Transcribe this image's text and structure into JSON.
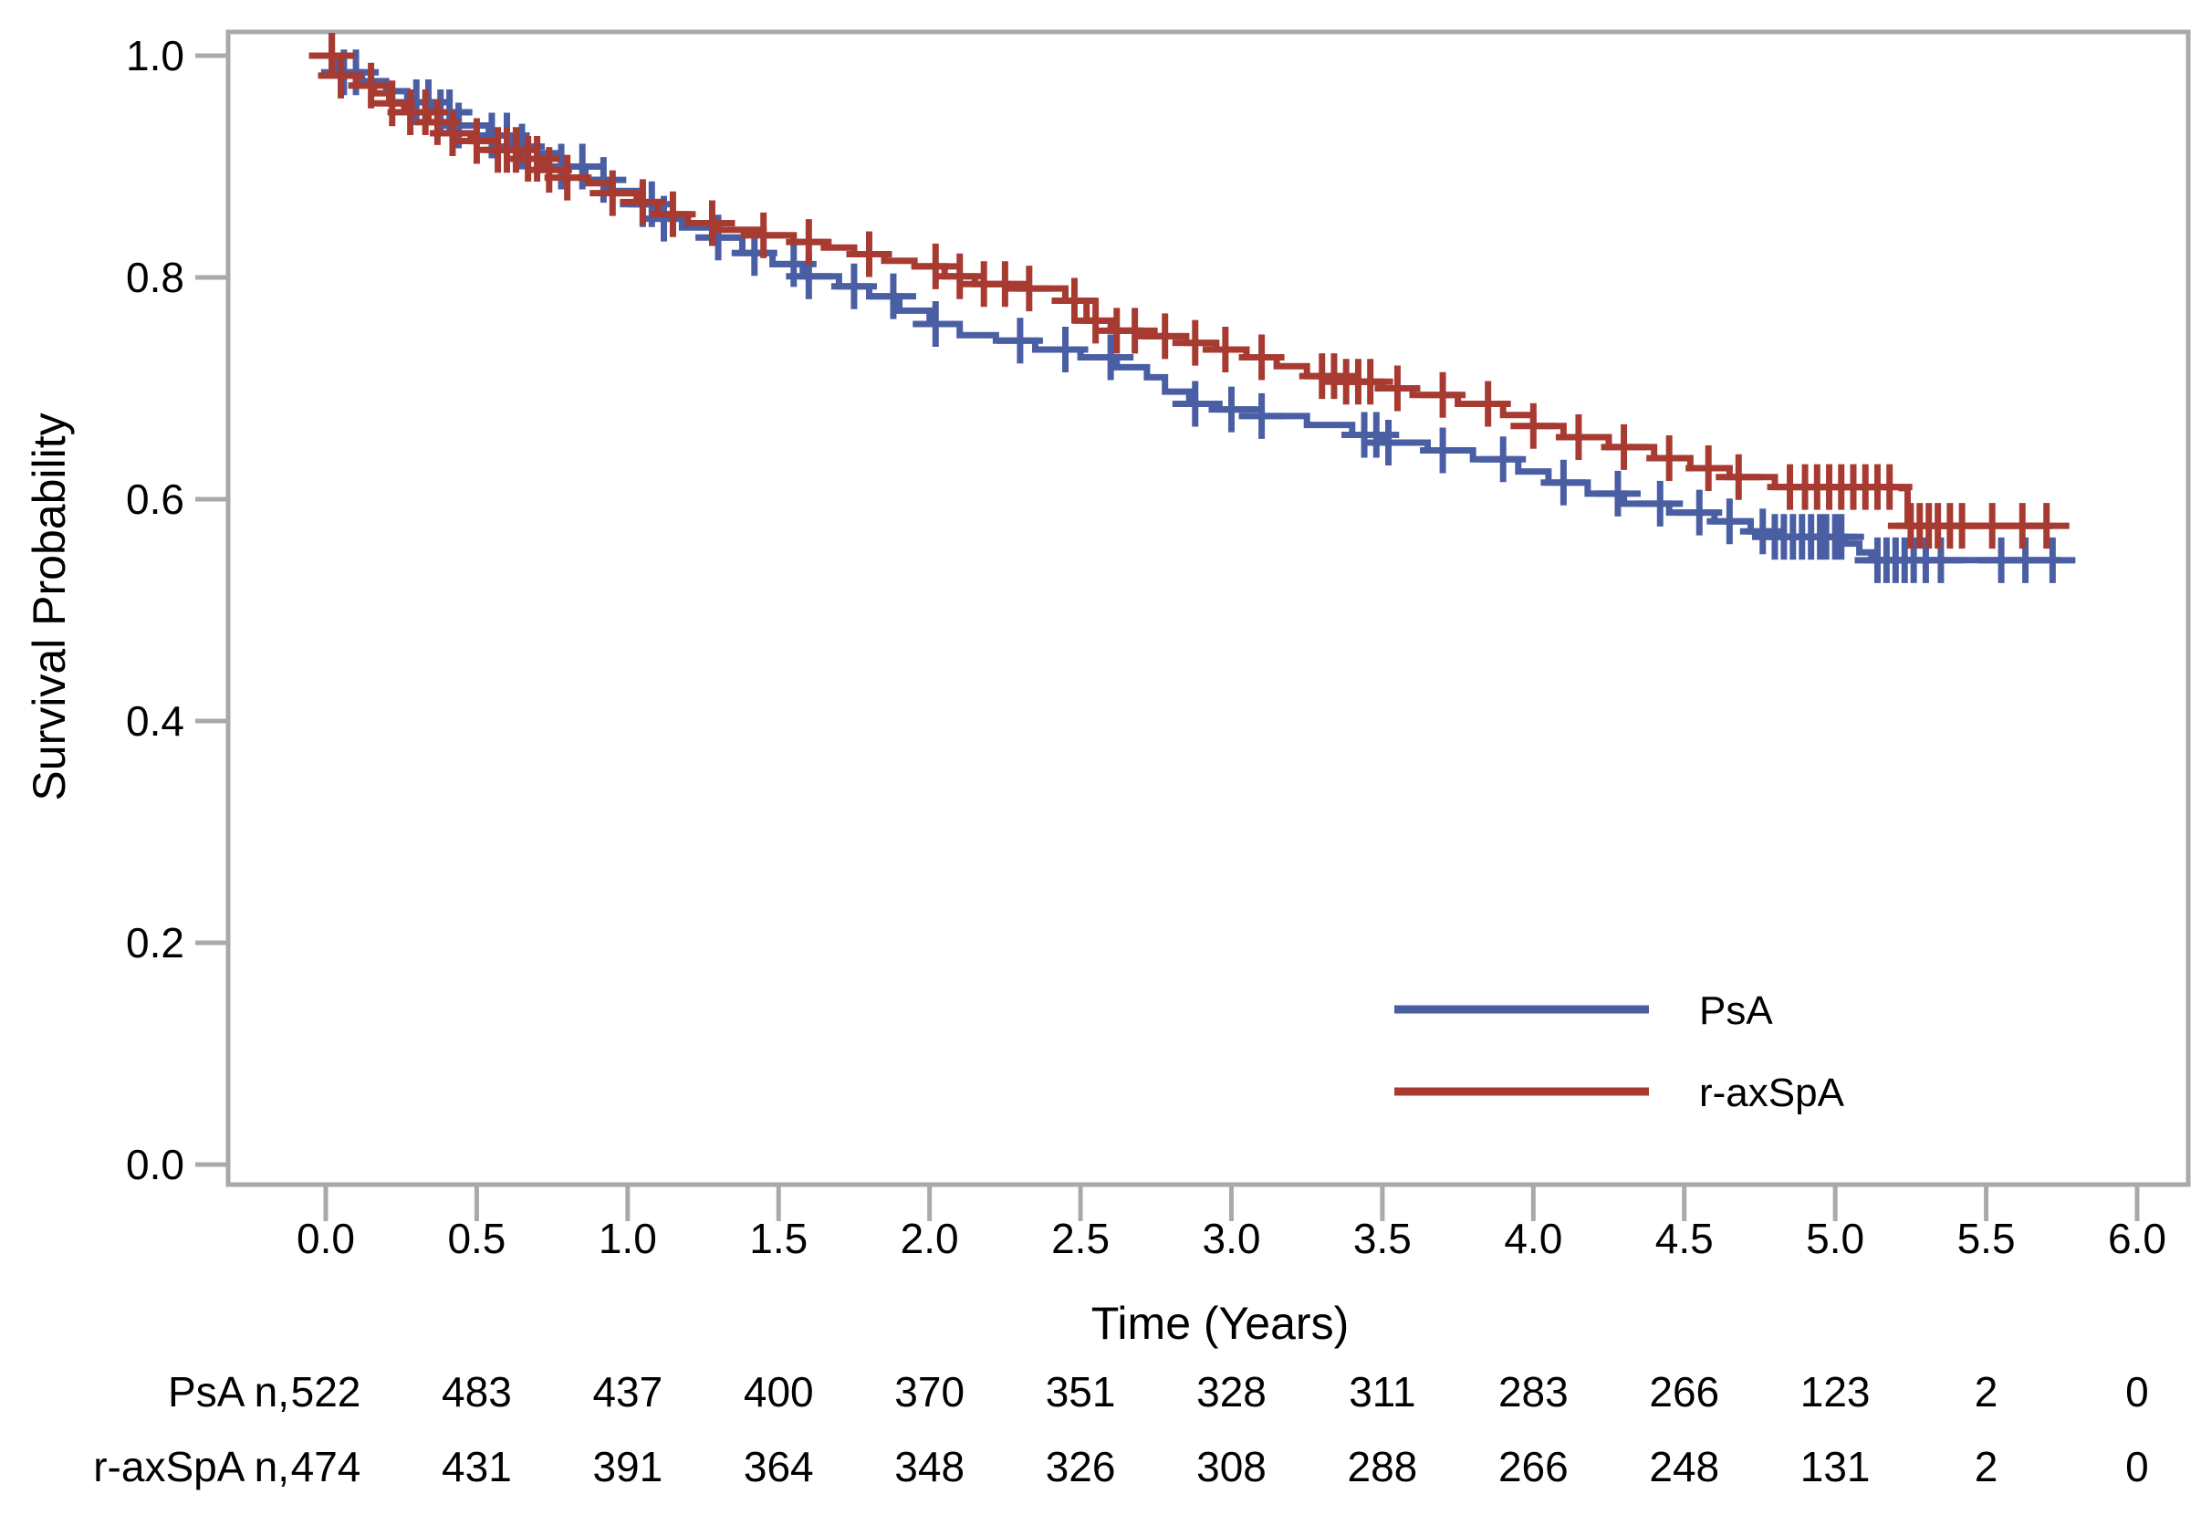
{
  "figure": {
    "y_axis": {
      "title": "Survival Probability",
      "tick_labels": [
        "1.0",
        "0.8",
        "0.6",
        "0.4",
        "0.2",
        "0.0"
      ],
      "tick_values": [
        1.0,
        0.8,
        0.6,
        0.4,
        0.2,
        0.0
      ]
    },
    "x_axis": {
      "title": "Time (Years)",
      "tick_labels": [
        "0.0",
        "0.5",
        "1.0",
        "1.5",
        "2.0",
        "2.5",
        "3.0",
        "3.5",
        "4.0",
        "4.5",
        "5.0",
        "5.5",
        "6.0"
      ],
      "tick_values": [
        0,
        0.5,
        1.0,
        1.5,
        2.0,
        2.5,
        3.0,
        3.5,
        4.0,
        4.5,
        5.0,
        5.5,
        6.0
      ]
    },
    "legend": [
      {
        "label": "PsA",
        "color": "#4A5EA3"
      },
      {
        "label": "r-axSpA",
        "color": "#A73B31"
      }
    ],
    "risk_table": {
      "rows": [
        {
          "label": "PsA n,",
          "values": [
            522,
            483,
            437,
            400,
            370,
            351,
            328,
            311,
            283,
            266,
            123,
            2,
            0
          ]
        },
        {
          "label": "r-axSpA n,",
          "values": [
            474,
            431,
            391,
            364,
            348,
            326,
            308,
            288,
            266,
            248,
            131,
            2,
            0
          ]
        }
      ]
    },
    "colors": {
      "axis": "#A7A9AB",
      "text": "#000000"
    }
  },
  "chart_data": {
    "type": "line",
    "subtype": "kaplan-meier-step",
    "title": "",
    "xlabel": "Time (Years)",
    "ylabel": "Survival Probability",
    "xlim": [
      0,
      6
    ],
    "ylim": [
      0,
      1
    ],
    "grid": false,
    "legend_position": "inside-lower-right",
    "series": [
      {
        "name": "PsA",
        "color": "#4A5EA3",
        "steps": [
          [
            0,
            1.0
          ],
          [
            0.04,
            0.985
          ],
          [
            0.12,
            0.977
          ],
          [
            0.2,
            0.968
          ],
          [
            0.27,
            0.958
          ],
          [
            0.35,
            0.949
          ],
          [
            0.44,
            0.937
          ],
          [
            0.54,
            0.928
          ],
          [
            0.62,
            0.918
          ],
          [
            0.7,
            0.912
          ],
          [
            0.78,
            0.9
          ],
          [
            0.86,
            0.888
          ],
          [
            0.94,
            0.878
          ],
          [
            1.03,
            0.866
          ],
          [
            1.1,
            0.853
          ],
          [
            1.18,
            0.845
          ],
          [
            1.28,
            0.836
          ],
          [
            1.38,
            0.822
          ],
          [
            1.48,
            0.812
          ],
          [
            1.58,
            0.801
          ],
          [
            1.7,
            0.792
          ],
          [
            1.8,
            0.783
          ],
          [
            1.9,
            0.77
          ],
          [
            2.0,
            0.758
          ],
          [
            2.1,
            0.748
          ],
          [
            2.22,
            0.743
          ],
          [
            2.35,
            0.735
          ],
          [
            2.5,
            0.728
          ],
          [
            2.62,
            0.719
          ],
          [
            2.72,
            0.71
          ],
          [
            2.78,
            0.697
          ],
          [
            2.86,
            0.686
          ],
          [
            2.96,
            0.681
          ],
          [
            3.1,
            0.675
          ],
          [
            3.25,
            0.667
          ],
          [
            3.4,
            0.658
          ],
          [
            3.5,
            0.651
          ],
          [
            3.65,
            0.644
          ],
          [
            3.8,
            0.636
          ],
          [
            3.95,
            0.625
          ],
          [
            4.05,
            0.615
          ],
          [
            4.18,
            0.605
          ],
          [
            4.3,
            0.596
          ],
          [
            4.45,
            0.588
          ],
          [
            4.6,
            0.58
          ],
          [
            4.72,
            0.571
          ],
          [
            4.8,
            0.566
          ],
          [
            5.03,
            0.56
          ],
          [
            5.08,
            0.552
          ],
          [
            5.12,
            0.545
          ],
          [
            5.75,
            0.545
          ]
        ],
        "censor_times": [
          0.02,
          0.06,
          0.1,
          0.3,
          0.34,
          0.38,
          0.41,
          0.44,
          0.55,
          0.6,
          0.65,
          0.78,
          0.85,
          0.92,
          1.05,
          1.08,
          1.12,
          1.3,
          1.42,
          1.55,
          1.6,
          1.75,
          1.88,
          2.02,
          2.3,
          2.45,
          2.6,
          2.88,
          3.0,
          3.1,
          3.44,
          3.48,
          3.52,
          3.7,
          3.9,
          4.1,
          4.28,
          4.42,
          4.55,
          4.65,
          4.76,
          4.8,
          4.83,
          4.86,
          4.89,
          4.92,
          4.95,
          4.97,
          5.0,
          5.02,
          5.14,
          5.17,
          5.2,
          5.23,
          5.26,
          5.3,
          5.35,
          5.55,
          5.63,
          5.72
        ]
      },
      {
        "name": "r-axSpA",
        "color": "#A73B31",
        "steps": [
          [
            0,
            1.0
          ],
          [
            0.05,
            0.982
          ],
          [
            0.1,
            0.973
          ],
          [
            0.16,
            0.966
          ],
          [
            0.21,
            0.957
          ],
          [
            0.26,
            0.949
          ],
          [
            0.34,
            0.94
          ],
          [
            0.42,
            0.93
          ],
          [
            0.48,
            0.923
          ],
          [
            0.57,
            0.915
          ],
          [
            0.64,
            0.907
          ],
          [
            0.72,
            0.897
          ],
          [
            0.8,
            0.89
          ],
          [
            0.87,
            0.885
          ],
          [
            0.95,
            0.876
          ],
          [
            1.03,
            0.868
          ],
          [
            1.1,
            0.857
          ],
          [
            1.2,
            0.849
          ],
          [
            1.3,
            0.843
          ],
          [
            1.45,
            0.838
          ],
          [
            1.55,
            0.832
          ],
          [
            1.65,
            0.827
          ],
          [
            1.75,
            0.821
          ],
          [
            1.85,
            0.815
          ],
          [
            1.95,
            0.81
          ],
          [
            2.05,
            0.801
          ],
          [
            2.15,
            0.794
          ],
          [
            2.3,
            0.79
          ],
          [
            2.45,
            0.779
          ],
          [
            2.52,
            0.761
          ],
          [
            2.6,
            0.752
          ],
          [
            2.7,
            0.747
          ],
          [
            2.85,
            0.741
          ],
          [
            2.95,
            0.735
          ],
          [
            3.05,
            0.728
          ],
          [
            3.15,
            0.72
          ],
          [
            3.25,
            0.711
          ],
          [
            3.35,
            0.706
          ],
          [
            3.5,
            0.7
          ],
          [
            3.6,
            0.694
          ],
          [
            3.75,
            0.686
          ],
          [
            3.9,
            0.676
          ],
          [
            4.0,
            0.666
          ],
          [
            4.1,
            0.656
          ],
          [
            4.25,
            0.647
          ],
          [
            4.4,
            0.637
          ],
          [
            4.52,
            0.628
          ],
          [
            4.65,
            0.62
          ],
          [
            4.8,
            0.611
          ],
          [
            5.22,
            0.61
          ],
          [
            5.24,
            0.576
          ],
          [
            5.72,
            0.576
          ]
        ],
        "censor_times": [
          0.02,
          0.05,
          0.15,
          0.22,
          0.28,
          0.33,
          0.37,
          0.42,
          0.5,
          0.57,
          0.6,
          0.63,
          0.67,
          0.7,
          0.74,
          0.8,
          0.95,
          1.05,
          1.15,
          1.28,
          1.45,
          1.6,
          1.8,
          2.02,
          2.1,
          2.18,
          2.25,
          2.33,
          2.48,
          2.55,
          2.62,
          2.68,
          2.78,
          2.88,
          2.98,
          3.1,
          3.3,
          3.34,
          3.38,
          3.42,
          3.46,
          3.55,
          3.7,
          3.85,
          4.0,
          4.15,
          4.3,
          4.45,
          4.58,
          4.68,
          4.85,
          4.9,
          4.94,
          4.98,
          5.02,
          5.06,
          5.1,
          5.14,
          5.18,
          5.25,
          5.28,
          5.31,
          5.34,
          5.38,
          5.42,
          5.52,
          5.62,
          5.7
        ]
      }
    ],
    "at_risk": {
      "times": [
        0,
        0.5,
        1.0,
        1.5,
        2.0,
        2.5,
        3.0,
        3.5,
        4.0,
        4.5,
        5.0,
        5.5,
        6.0
      ],
      "PsA": [
        522,
        483,
        437,
        400,
        370,
        351,
        328,
        311,
        283,
        266,
        123,
        2,
        0
      ],
      "r-axSpA": [
        474,
        431,
        391,
        364,
        348,
        326,
        308,
        288,
        266,
        248,
        131,
        2,
        0
      ]
    }
  }
}
